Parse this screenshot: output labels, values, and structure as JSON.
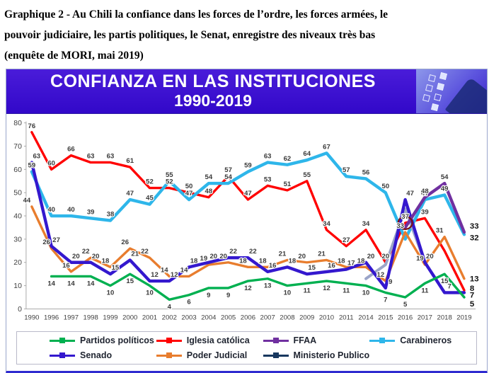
{
  "caption": {
    "lines": [
      "Graphique 2 - Au Chili la confiance dans les forces de l’ordre, les forces armées, le",
      "pouvoir judiciaire, les partis politiques, le Senat, enregistre des niveaux très bas",
      "(enquête de MORI, mai 2019)"
    ]
  },
  "banner": {
    "line1": "CONFIANZA EN LAS INSTITUCIONES",
    "line2": "1990-2019"
  },
  "chart_data": {
    "type": "line",
    "title": "CONFIANZA EN LAS INSTITUCIONES 1990-2019",
    "xlabel": "",
    "ylabel": "",
    "ylim": [
      0,
      80
    ],
    "yticks": [
      0,
      10,
      20,
      30,
      40,
      50,
      60,
      70,
      80
    ],
    "grid": false,
    "legend_position": "bottom",
    "categories": [
      "1990",
      "1996",
      "1997",
      "1998",
      "1999",
      "2000",
      "2001",
      "2002",
      "2003",
      "2004",
      "2005",
      "2006",
      "2007",
      "2008",
      "2009",
      "2010",
      "2011",
      "2014",
      "2015",
      "2016",
      "2017",
      "2018",
      "2019"
    ],
    "series": [
      {
        "name": "Iglesia católica",
        "color": "#ff0000",
        "width": 3.4,
        "label_pos": "above",
        "label_dx": 0,
        "end_bold": true,
        "end_dy": 1,
        "unlabeled": [
          21
        ],
        "values": [
          76,
          60,
          66,
          63,
          63,
          61,
          52,
          52,
          50,
          48,
          57,
          47,
          53,
          51,
          55,
          34,
          27,
          34,
          20,
          37,
          39,
          25,
          8
        ]
      },
      {
        "name": "Carabineros",
        "color": "#2eb6ea",
        "width": 4.4,
        "label_pos": "above",
        "label_dx": 0,
        "end_bold": true,
        "end_dy": 8,
        "unlabeled": [
          19
        ],
        "values": [
          59,
          40,
          40,
          39,
          38,
          47,
          45,
          55,
          47,
          54,
          54,
          59,
          63,
          62,
          64,
          67,
          57,
          56,
          50,
          30,
          47,
          49,
          32
        ]
      },
      {
        "name": "Poder Judicial",
        "color": "#e87d2e",
        "width": 3.4,
        "label_pos": "above",
        "label_dx": -7,
        "end_bold": true,
        "end_dy": 0,
        "unlabeled": [],
        "values": [
          44,
          26,
          16,
          22,
          18,
          26,
          22,
          14,
          14,
          19,
          20,
          18,
          18,
          21,
          20,
          21,
          18,
          18,
          12,
          33,
          19,
          31,
          13
        ]
      },
      {
        "name": "Ministerio Publico",
        "color": "#9ba5c9",
        "width": 4,
        "label_pos": "above",
        "labels": false,
        "end_bold": false,
        "legend_marker": "#17375e",
        "unlabeled": [],
        "values": [
          null,
          null,
          null,
          null,
          null,
          null,
          null,
          null,
          null,
          null,
          null,
          null,
          null,
          null,
          null,
          null,
          null,
          13,
          19,
          43,
          20,
          null,
          null
        ]
      },
      {
        "name": "Senado",
        "color": "#3418ce",
        "width": 4.4,
        "label_pos": "above",
        "label_dx": 7,
        "end_bold": true,
        "end_dy": 7,
        "unlabeled": [],
        "values": [
          63,
          27,
          20,
          20,
          15,
          21,
          12,
          12,
          18,
          20,
          22,
          22,
          16,
          18,
          15,
          16,
          17,
          20,
          9,
          47,
          20,
          7,
          7
        ]
      },
      {
        "name": "FFAA",
        "color": "#7030a0",
        "width": 4.4,
        "label_pos": "above",
        "label_dx": 0,
        "end_bold": true,
        "end_dy": -5,
        "unlabeled": [
          19
        ],
        "values": [
          null,
          null,
          null,
          null,
          null,
          null,
          null,
          null,
          null,
          null,
          null,
          null,
          null,
          null,
          null,
          null,
          null,
          null,
          null,
          35,
          48,
          54,
          33
        ]
      },
      {
        "name": "Partidos políticos",
        "color": "#00b050",
        "width": 3.4,
        "label_pos": "below",
        "label_dx": 0,
        "end_bold": true,
        "end_dy": 13,
        "unlabeled": [],
        "values": [
          null,
          14,
          14,
          14,
          10,
          15,
          10,
          4,
          6,
          9,
          9,
          12,
          13,
          10,
          11,
          12,
          11,
          10,
          7,
          5,
          11,
          15,
          5
        ]
      }
    ],
    "annotation": {
      "label": "circled value",
      "series": "Iglesia católica",
      "category": "2016",
      "value": 37,
      "x_index": 19,
      "color": "#7b1113"
    }
  },
  "legend": {
    "items": [
      {
        "label": "Partidos políticos",
        "color": "#00b050"
      },
      {
        "label": "Iglesia católica",
        "color": "#ff0000"
      },
      {
        "label": "FFAA",
        "color": "#7030a0"
      },
      {
        "label": "Carabineros",
        "color": "#2eb6ea"
      },
      {
        "label": "Senado",
        "color": "#3418ce"
      },
      {
        "label": "Poder Judicial",
        "color": "#e87d2e"
      },
      {
        "label": "Ministerio Publico",
        "color": "#17375e"
      }
    ]
  }
}
